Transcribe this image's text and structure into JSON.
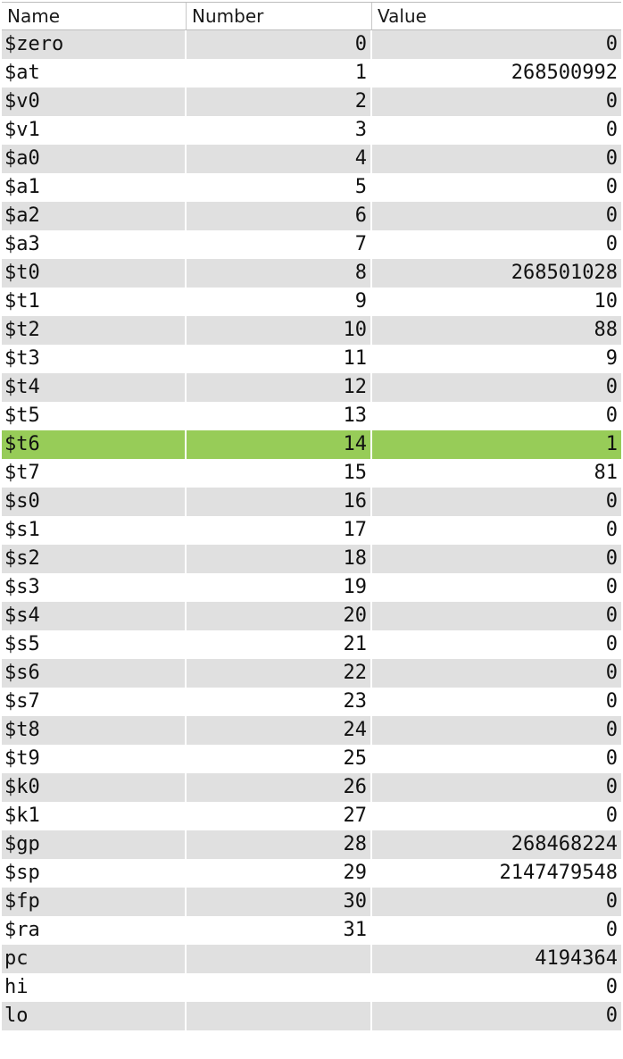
{
  "columns": {
    "name": "Name",
    "number": "Number",
    "value": "Value"
  },
  "colors": {
    "shaded_row": "#e0e0e0",
    "selected_row": "#97cc58",
    "background": "#ffffff"
  },
  "selected_register": "$t6",
  "registers": [
    {
      "name": "$zero",
      "number": "0",
      "value": "0"
    },
    {
      "name": "$at",
      "number": "1",
      "value": "268500992"
    },
    {
      "name": "$v0",
      "number": "2",
      "value": "0"
    },
    {
      "name": "$v1",
      "number": "3",
      "value": "0"
    },
    {
      "name": "$a0",
      "number": "4",
      "value": "0"
    },
    {
      "name": "$a1",
      "number": "5",
      "value": "0"
    },
    {
      "name": "$a2",
      "number": "6",
      "value": "0"
    },
    {
      "name": "$a3",
      "number": "7",
      "value": "0"
    },
    {
      "name": "$t0",
      "number": "8",
      "value": "268501028"
    },
    {
      "name": "$t1",
      "number": "9",
      "value": "10"
    },
    {
      "name": "$t2",
      "number": "10",
      "value": "88"
    },
    {
      "name": "$t3",
      "number": "11",
      "value": "9"
    },
    {
      "name": "$t4",
      "number": "12",
      "value": "0"
    },
    {
      "name": "$t5",
      "number": "13",
      "value": "0"
    },
    {
      "name": "$t6",
      "number": "14",
      "value": "1"
    },
    {
      "name": "$t7",
      "number": "15",
      "value": "81"
    },
    {
      "name": "$s0",
      "number": "16",
      "value": "0"
    },
    {
      "name": "$s1",
      "number": "17",
      "value": "0"
    },
    {
      "name": "$s2",
      "number": "18",
      "value": "0"
    },
    {
      "name": "$s3",
      "number": "19",
      "value": "0"
    },
    {
      "name": "$s4",
      "number": "20",
      "value": "0"
    },
    {
      "name": "$s5",
      "number": "21",
      "value": "0"
    },
    {
      "name": "$s6",
      "number": "22",
      "value": "0"
    },
    {
      "name": "$s7",
      "number": "23",
      "value": "0"
    },
    {
      "name": "$t8",
      "number": "24",
      "value": "0"
    },
    {
      "name": "$t9",
      "number": "25",
      "value": "0"
    },
    {
      "name": "$k0",
      "number": "26",
      "value": "0"
    },
    {
      "name": "$k1",
      "number": "27",
      "value": "0"
    },
    {
      "name": "$gp",
      "number": "28",
      "value": "268468224"
    },
    {
      "name": "$sp",
      "number": "29",
      "value": "2147479548"
    },
    {
      "name": "$fp",
      "number": "30",
      "value": "0"
    },
    {
      "name": "$ra",
      "number": "31",
      "value": "0"
    },
    {
      "name": "pc",
      "number": "",
      "value": "4194364"
    },
    {
      "name": "hi",
      "number": "",
      "value": "0"
    },
    {
      "name": "lo",
      "number": "",
      "value": "0"
    }
  ]
}
